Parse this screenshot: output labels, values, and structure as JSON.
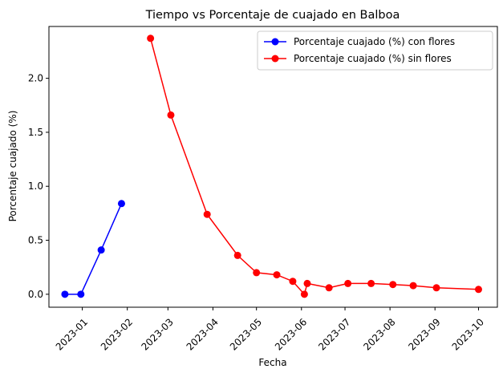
{
  "chart_data": {
    "type": "line",
    "title": "Tiempo vs Porcentaje de cuajado en Balboa",
    "xlabel": "Fecha",
    "ylabel": "Porcentaje cuajado (%)",
    "x_axis_type": "date",
    "xlim": [
      "2022-12-09",
      "2023-10-14"
    ],
    "ylim": [
      -0.12,
      2.48
    ],
    "x_ticks": [
      "2023-01-01",
      "2023-02-01",
      "2023-03-01",
      "2023-04-01",
      "2023-05-01",
      "2023-06-01",
      "2023-07-01",
      "2023-08-01",
      "2023-09-01",
      "2023-10-01"
    ],
    "x_tick_labels": [
      "2023-01",
      "2023-02",
      "2023-03",
      "2023-04",
      "2023-05",
      "2023-06",
      "2023-07",
      "2023-08",
      "2023-09",
      "2023-10"
    ],
    "y_ticks": [
      0.0,
      0.5,
      1.0,
      1.5,
      2.0
    ],
    "y_tick_labels": [
      "0.0",
      "0.5",
      "1.0",
      "1.5",
      "2.0"
    ],
    "grid": false,
    "legend_position": "top-right",
    "series": [
      {
        "name": "Porcentaje cuajado (%) con flores",
        "color": "#0000ff",
        "marker": "circle",
        "x": [
          "2022-12-20",
          "2022-12-31",
          "2023-01-14",
          "2023-01-28"
        ],
        "y": [
          0.0,
          0.0,
          0.41,
          0.84
        ]
      },
      {
        "name": "Porcentaje cuajado (%) sin flores",
        "color": "#ff0000",
        "marker": "circle",
        "x": [
          "2023-02-17",
          "2023-03-03",
          "2023-03-28",
          "2023-04-18",
          "2023-05-01",
          "2023-05-15",
          "2023-05-26",
          "2023-06-03",
          "2023-06-05",
          "2023-06-20",
          "2023-07-03",
          "2023-07-19",
          "2023-08-03",
          "2023-08-17",
          "2023-09-02",
          "2023-10-01"
        ],
        "y": [
          2.37,
          1.66,
          0.74,
          0.36,
          0.2,
          0.18,
          0.12,
          0.0,
          0.1,
          0.06,
          0.1,
          0.1,
          0.09,
          0.08,
          0.06,
          0.045
        ]
      }
    ]
  }
}
